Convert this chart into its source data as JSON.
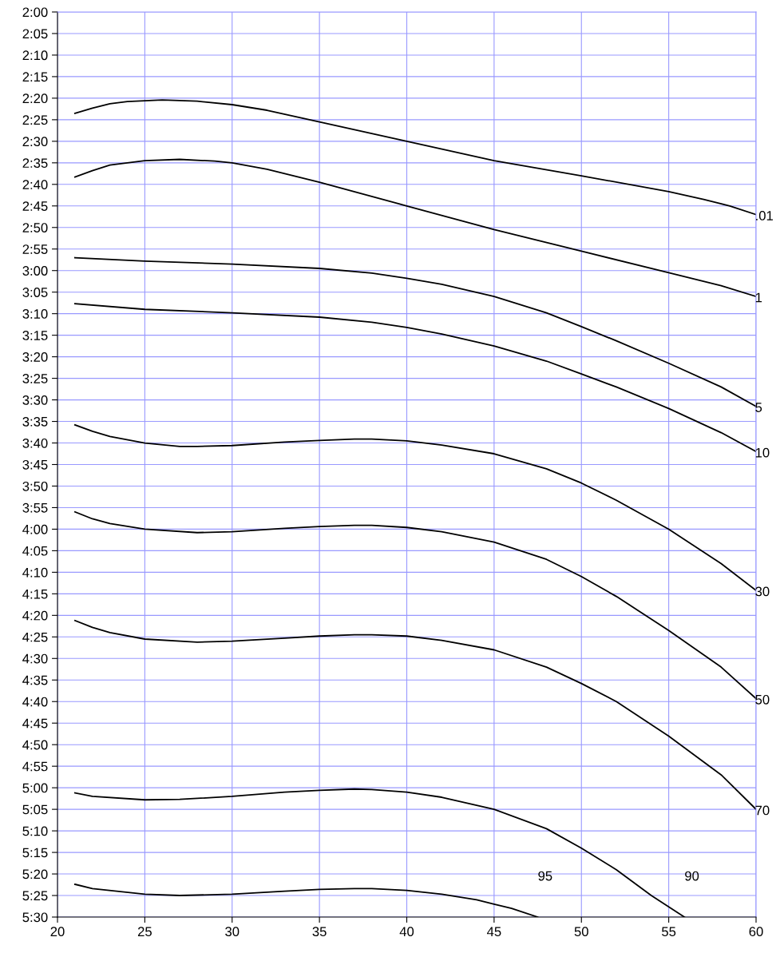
{
  "chart_data": {
    "type": "line",
    "xlim": [
      20,
      60
    ],
    "xticks": [
      20,
      25,
      30,
      35,
      40,
      45,
      50,
      55,
      60
    ],
    "ylim": [
      330,
      120
    ],
    "yticks": [
      {
        "value": 120,
        "label": "2:00"
      },
      {
        "value": 125,
        "label": "2:05"
      },
      {
        "value": 130,
        "label": "2:10"
      },
      {
        "value": 135,
        "label": "2:15"
      },
      {
        "value": 140,
        "label": "2:20"
      },
      {
        "value": 145,
        "label": "2:25"
      },
      {
        "value": 150,
        "label": "2:30"
      },
      {
        "value": 155,
        "label": "2:35"
      },
      {
        "value": 160,
        "label": "2:40"
      },
      {
        "value": 165,
        "label": "2:45"
      },
      {
        "value": 170,
        "label": "2:50"
      },
      {
        "value": 175,
        "label": "2:55"
      },
      {
        "value": 180,
        "label": "3:00"
      },
      {
        "value": 185,
        "label": "3:05"
      },
      {
        "value": 190,
        "label": "3:10"
      },
      {
        "value": 195,
        "label": "3:15"
      },
      {
        "value": 200,
        "label": "3:20"
      },
      {
        "value": 205,
        "label": "3:25"
      },
      {
        "value": 210,
        "label": "3:30"
      },
      {
        "value": 215,
        "label": "3:35"
      },
      {
        "value": 220,
        "label": "3:40"
      },
      {
        "value": 225,
        "label": "3:45"
      },
      {
        "value": 230,
        "label": "3:50"
      },
      {
        "value": 235,
        "label": "3:55"
      },
      {
        "value": 240,
        "label": "4:00"
      },
      {
        "value": 245,
        "label": "4:05"
      },
      {
        "value": 250,
        "label": "4:10"
      },
      {
        "value": 255,
        "label": "4:15"
      },
      {
        "value": 260,
        "label": "4:20"
      },
      {
        "value": 265,
        "label": "4:25"
      },
      {
        "value": 270,
        "label": "4:30"
      },
      {
        "value": 275,
        "label": "4:35"
      },
      {
        "value": 280,
        "label": "4:40"
      },
      {
        "value": 285,
        "label": "4:45"
      },
      {
        "value": 290,
        "label": "4:50"
      },
      {
        "value": 295,
        "label": "4:55"
      },
      {
        "value": 300,
        "label": "5:00"
      },
      {
        "value": 305,
        "label": "5:05"
      },
      {
        "value": 310,
        "label": "5:10"
      },
      {
        "value": 315,
        "label": "5:15"
      },
      {
        "value": 320,
        "label": "5:20"
      },
      {
        "value": 325,
        "label": "5:25"
      },
      {
        "value": 330,
        "label": "5:30"
      }
    ],
    "grid": true,
    "legend": false,
    "marker": "none",
    "line_style": "solid",
    "series": [
      {
        "name": ".01",
        "color": "#000000",
        "x": [
          21,
          22,
          23,
          24,
          26,
          28,
          30,
          32,
          35,
          40,
          45,
          50,
          55,
          57,
          58.5,
          60
        ],
        "values": [
          143.5,
          142.3,
          141.3,
          140.8,
          140.4,
          140.7,
          141.5,
          142.8,
          145.5,
          150,
          154.5,
          158,
          161.7,
          163.5,
          165,
          167
        ]
      },
      {
        "name": "1",
        "color": "#000000",
        "x": [
          21,
          22,
          23,
          25,
          27,
          29,
          30,
          32,
          35,
          40,
          45,
          50,
          55,
          58,
          60
        ],
        "values": [
          158.3,
          156.8,
          155.5,
          154.5,
          154.2,
          154.6,
          155,
          156.5,
          159.5,
          165,
          170.5,
          175.5,
          180.5,
          183.5,
          186
        ]
      },
      {
        "name": "5",
        "color": "#000000",
        "x": [
          21,
          25,
          30,
          35,
          38,
          40,
          42,
          45,
          48,
          50,
          52,
          55,
          58,
          60
        ],
        "values": [
          177,
          177.8,
          178.5,
          179.5,
          180.6,
          181.8,
          183.2,
          186,
          189.8,
          193,
          196.3,
          201.5,
          207,
          211.5
        ]
      },
      {
        "name": "10",
        "color": "#000000",
        "x": [
          21,
          25,
          30,
          35,
          38,
          40,
          42,
          45,
          48,
          50,
          52,
          55,
          58,
          60
        ],
        "values": [
          187.7,
          189,
          189.8,
          190.8,
          192,
          193.2,
          194.7,
          197.5,
          201,
          204,
          207,
          212,
          217.6,
          222
        ]
      },
      {
        "name": "30",
        "color": "#000000",
        "x": [
          21,
          22,
          23,
          25,
          27,
          28,
          30,
          33,
          35,
          37,
          38,
          40,
          42,
          45,
          48,
          50,
          52,
          55,
          58,
          60
        ],
        "values": [
          215.8,
          217.3,
          218.5,
          220,
          220.8,
          220.8,
          220.6,
          219.8,
          219.4,
          219.1,
          219.1,
          219.5,
          220.5,
          222.5,
          226,
          229.3,
          233.3,
          240,
          248,
          254.2
        ]
      },
      {
        "name": "50",
        "color": "#000000",
        "x": [
          21,
          22,
          23,
          25,
          28,
          30,
          33,
          35,
          37,
          38,
          40,
          42,
          45,
          48,
          50,
          52,
          55,
          58,
          60
        ],
        "values": [
          236,
          237.6,
          238.7,
          240,
          240.8,
          240.6,
          239.8,
          239.4,
          239.1,
          239.1,
          239.6,
          240.6,
          243,
          247,
          251,
          255.6,
          263.5,
          272,
          279.3
        ]
      },
      {
        "name": "70",
        "color": "#000000",
        "x": [
          21,
          22,
          23,
          25,
          28,
          30,
          33,
          35,
          37,
          38,
          40,
          42,
          45,
          48,
          50,
          52,
          55,
          58,
          60
        ],
        "values": [
          261.2,
          262.8,
          264,
          265.5,
          266.2,
          266,
          265.3,
          264.8,
          264.5,
          264.5,
          264.8,
          265.8,
          268,
          272,
          275.8,
          280,
          288,
          297,
          305
        ]
      },
      {
        "name": "90",
        "color": "#000000",
        "x": [
          21,
          22,
          25,
          27,
          30,
          33,
          35,
          37,
          38,
          40,
          42,
          45,
          48,
          50,
          52,
          54,
          55.9
        ],
        "values": [
          301.2,
          302,
          302.8,
          302.7,
          302,
          301,
          300.6,
          300.3,
          300.4,
          301,
          302.2,
          305,
          309.5,
          314,
          319,
          325,
          330
        ]
      },
      {
        "name": "95",
        "color": "#000000",
        "x": [
          21,
          22,
          25,
          27,
          30,
          33,
          35,
          37,
          38,
          40,
          42,
          44,
          45,
          46,
          47.5
        ],
        "values": [
          322.4,
          323.4,
          324.7,
          325,
          324.7,
          324,
          323.6,
          323.4,
          323.4,
          323.8,
          324.7,
          326,
          327,
          328,
          330
        ]
      }
    ]
  }
}
